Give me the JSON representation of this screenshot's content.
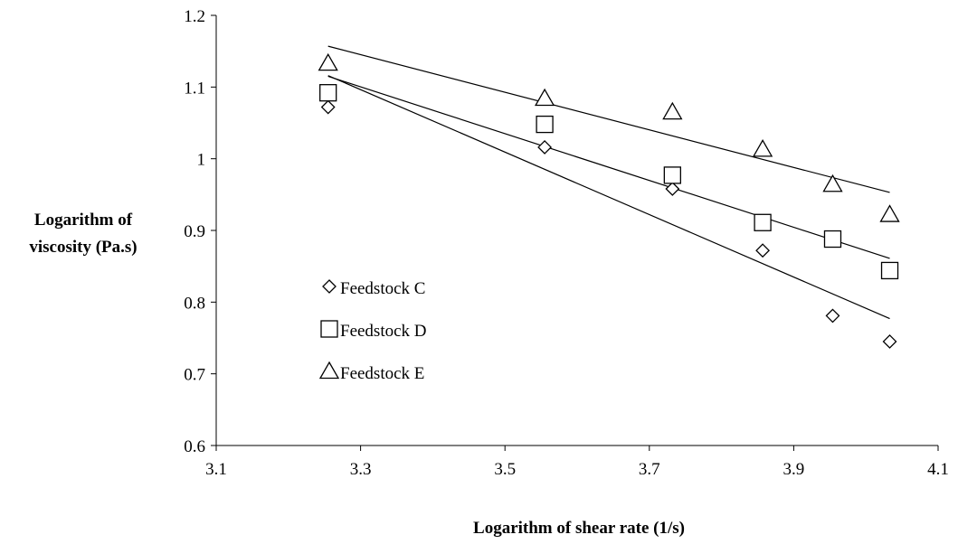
{
  "chart_data": {
    "type": "scatter",
    "title": "",
    "xlabel": "Logarithm of shear rate (1/s)",
    "ylabel_lines": [
      "Logarithm of",
      "viscosity (Pa.s)"
    ],
    "xlim": [
      3.1,
      4.1
    ],
    "ylim": [
      0.6,
      1.2
    ],
    "x_ticks": [
      "3.1",
      "3.3",
      "3.5",
      "3.7",
      "3.9",
      "4.1"
    ],
    "y_ticks": [
      "0.6",
      "0.7",
      "0.8",
      "0.9",
      "1",
      "1.1",
      "1.2"
    ],
    "grid": false,
    "legend_placement": "inside-left",
    "series": [
      {
        "name": "Feedstock C",
        "marker": "diamond",
        "x": [
          3.255,
          3.555,
          3.732,
          3.857,
          3.954,
          4.033
        ],
        "y": [
          1.072,
          1.016,
          0.958,
          0.872,
          0.781,
          0.745
        ],
        "trendline": {
          "x": [
            3.255,
            4.033
          ],
          "y": [
            1.116,
            0.777
          ]
        }
      },
      {
        "name": "Feedstock D",
        "marker": "square",
        "x": [
          3.255,
          3.555,
          3.732,
          3.857,
          3.954,
          4.033
        ],
        "y": [
          1.092,
          1.048,
          0.977,
          0.911,
          0.888,
          0.844
        ],
        "trendline": {
          "x": [
            3.255,
            4.033
          ],
          "y": [
            1.115,
            0.861
          ]
        }
      },
      {
        "name": "Feedstock E",
        "marker": "triangle",
        "x": [
          3.255,
          3.555,
          3.732,
          3.857,
          3.954,
          4.033
        ],
        "y": [
          1.133,
          1.084,
          1.065,
          1.013,
          0.964,
          0.922
        ],
        "trendline": {
          "x": [
            3.255,
            4.033
          ],
          "y": [
            1.157,
            0.953
          ]
        }
      }
    ]
  }
}
